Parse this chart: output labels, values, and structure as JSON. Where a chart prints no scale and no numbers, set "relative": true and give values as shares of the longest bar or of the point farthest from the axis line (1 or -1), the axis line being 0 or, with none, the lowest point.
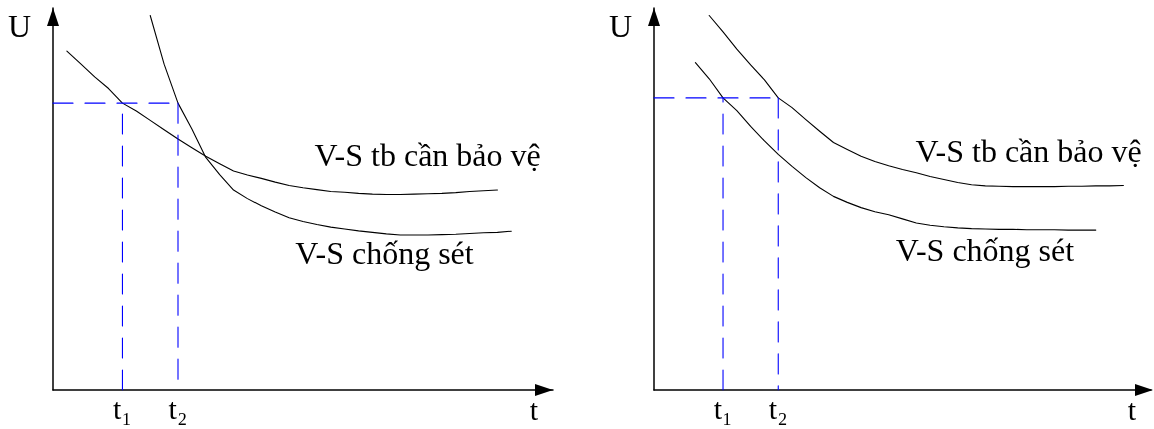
{
  "chart_data": [
    {
      "type": "line",
      "relative": true,
      "xlabel": "t",
      "ylabel": "U",
      "marker": "none",
      "line_style": "solid",
      "categories": [
        null,
        null,
        null,
        null,
        null,
        "t₁",
        null,
        null,
        null,
        "t₂",
        null,
        null,
        null,
        null,
        null,
        null,
        null,
        null,
        null,
        null,
        null,
        null,
        null,
        null,
        null,
        null,
        null,
        null,
        null,
        null,
        null,
        null,
        null,
        null,
        null,
        null,
        null
      ],
      "series": [
        {
          "name": "V-S tb cần bảo vệ",
          "color": "#000000",
          "values": [
            null,
            0.905,
            0.871,
            0.836,
            0.805,
            0.766,
            0.745,
            0.72,
            0.695,
            0.67,
            0.647,
            0.624,
            0.604,
            0.585,
            0.574,
            0.565,
            0.555,
            0.546,
            0.54,
            0.535,
            0.53,
            0.528,
            0.525,
            0.523,
            0.522,
            0.522,
            0.523,
            0.524,
            0.525,
            0.527,
            0.53,
            0.532,
            0.534,
            null,
            null,
            null,
            null
          ]
        },
        {
          "name": "V-S chống sét",
          "color": "#000000",
          "values": [
            null,
            null,
            null,
            null,
            null,
            null,
            null,
            1,
            0.87,
            0.766,
            0.697,
            0.621,
            0.575,
            0.534,
            0.511,
            0.492,
            0.475,
            0.46,
            0.45,
            0.442,
            0.435,
            0.43,
            0.425,
            0.421,
            0.417,
            0.414,
            0.414,
            0.414,
            0.415,
            0.416,
            0.418,
            0.42,
            0.421,
            0.424,
            null,
            null,
            null
          ]
        },
        {
          "color": "#0000ff",
          "line_style": "dashed",
          "values": [
            0.766,
            0.766,
            0.766,
            0.766,
            0.766,
            0.766,
            0.766,
            0.766,
            0.766,
            0.766,
            null,
            null,
            null,
            null,
            null,
            null,
            null,
            null,
            null,
            null,
            null,
            null,
            null,
            null,
            null,
            null,
            null,
            null,
            null,
            null,
            null,
            null,
            null,
            null,
            null,
            null,
            null
          ]
        },
        {
          "color": "#0000ff",
          "line_style": "dashed",
          "x": [
            "t₁",
            "t₁"
          ],
          "values": [
            0,
            0.766
          ]
        },
        {
          "color": "#0000ff",
          "line_style": "dashed",
          "x": [
            "t₂",
            "t₂"
          ],
          "values": [
            0.766,
            0
          ]
        }
      ]
    },
    {
      "type": "line",
      "relative": true,
      "xlabel": "t",
      "ylabel": "U",
      "marker": "none",
      "line_style": "solid",
      "categories": [
        null,
        null,
        null,
        null,
        null,
        "t₁",
        null,
        null,
        null,
        "t₂",
        null,
        null,
        null,
        null,
        null,
        null,
        null,
        null,
        null,
        null,
        null,
        null,
        null,
        null,
        null,
        null,
        null,
        null,
        null,
        null,
        null,
        null,
        null,
        null,
        null,
        null,
        null
      ],
      "series": [
        {
          "name": "V-S tb cần bảo vệ",
          "color": "#000000",
          "values": [
            null,
            null,
            null,
            null,
            1,
            0.956,
            0.91,
            0.868,
            0.828,
            0.78,
            0.754,
            0.722,
            0.691,
            0.661,
            0.642,
            0.624,
            0.61,
            0.599,
            0.589,
            0.58,
            0.57,
            0.562,
            0.554,
            0.548,
            0.545,
            0.544,
            0.543,
            0.543,
            0.543,
            0.543,
            0.544,
            0.544,
            0.545,
            0.545,
            0.546,
            null,
            null
          ]
        },
        {
          "name": "V-S chống sét",
          "color": "#000000",
          "values": [
            null,
            null,
            null,
            0.874,
            0.831,
            0.78,
            0.746,
            0.704,
            0.665,
            0.629,
            0.597,
            0.567,
            0.54,
            0.517,
            0.501,
            0.487,
            0.476,
            0.468,
            0.457,
            0.446,
            0.44,
            0.436,
            0.433,
            0.431,
            0.43,
            0.429,
            0.429,
            0.428,
            0.428,
            0.428,
            0.427,
            0.427,
            0.427,
            null,
            null,
            null,
            null
          ]
        },
        {
          "color": "#0000ff",
          "line_style": "dashed",
          "values": [
            0.78,
            0.78,
            0.78,
            0.78,
            0.78,
            0.78,
            0.78,
            0.78,
            0.78,
            0.78,
            null,
            null,
            null,
            null,
            null,
            null,
            null,
            null,
            null,
            null,
            null,
            null,
            null,
            null,
            null,
            null,
            null,
            null,
            null,
            null,
            null,
            null,
            null,
            null,
            null,
            null,
            null
          ]
        },
        {
          "color": "#0000ff",
          "line_style": "dashed",
          "x": [
            "t₁",
            "t₁"
          ],
          "values": [
            0,
            0.78
          ]
        },
        {
          "color": "#0000ff",
          "line_style": "dashed",
          "x": [
            "t₂",
            "t₂"
          ],
          "values": [
            0.78,
            0
          ]
        }
      ]
    }
  ]
}
